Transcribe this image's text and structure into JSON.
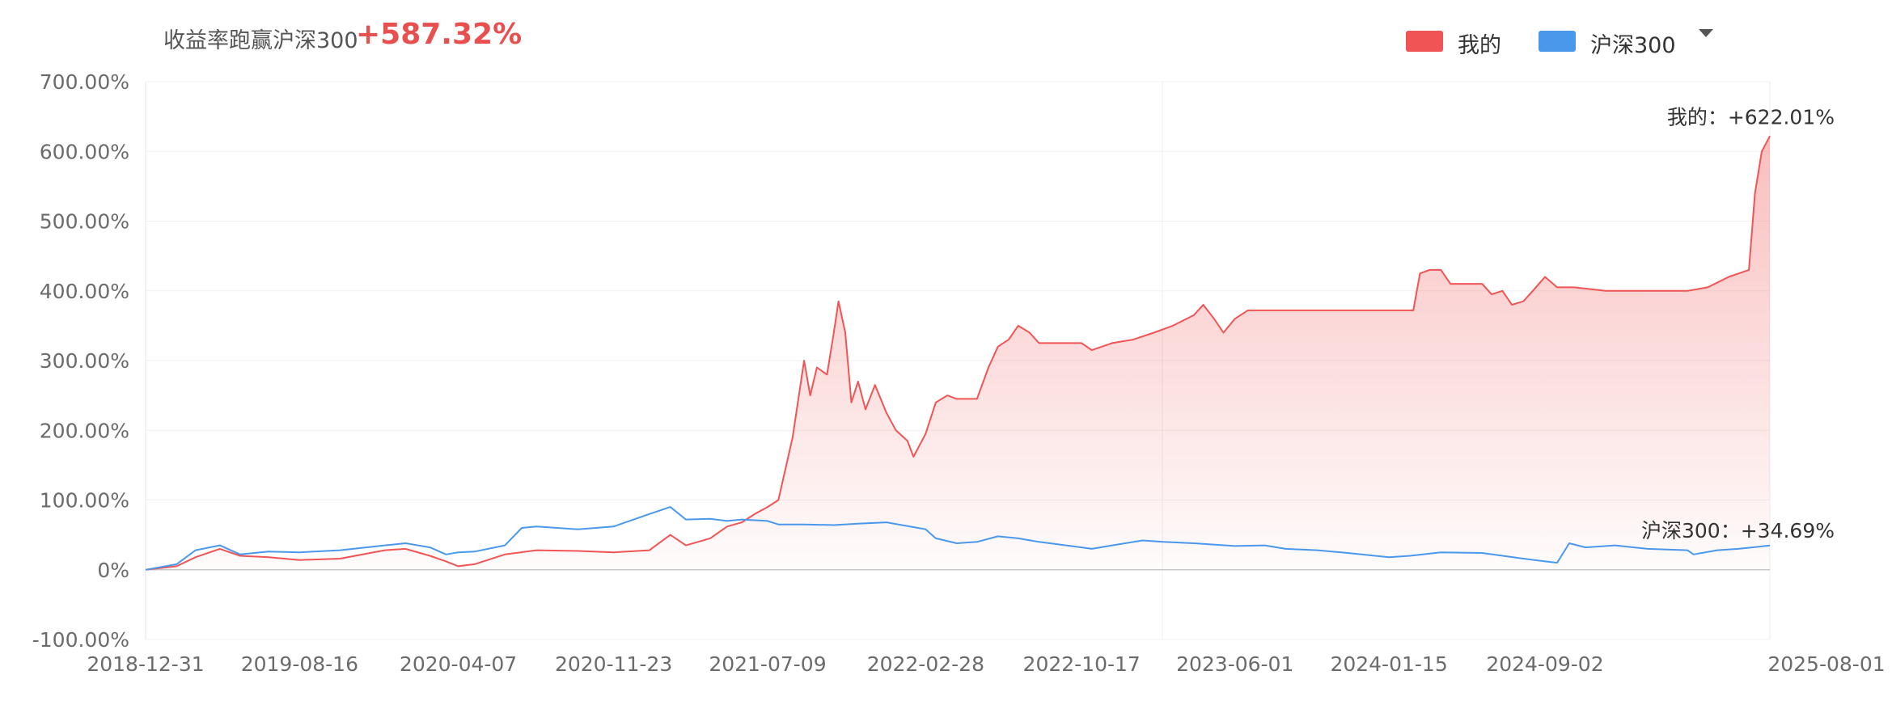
{
  "header": {
    "headline_label": "收益率跑赢沪深300",
    "headline_value": "+587.32%",
    "legend": [
      {
        "name": "我的",
        "color": "#f05454"
      },
      {
        "name": "沪深300",
        "color": "#4a98ec"
      }
    ],
    "legend_toggle_icon": "chevron-down-icon"
  },
  "chart_data": {
    "type": "area",
    "x_ticks": [
      "2018-12-31",
      "2019-08-16",
      "2020-04-07",
      "2020-11-23",
      "2021-07-09",
      "2022-02-28",
      "2022-10-17",
      "2023-06-01",
      "2024-01-15",
      "2024-09-02",
      "2025-08-01"
    ],
    "y_ticks": [
      "700.00%",
      "600.00%",
      "500.00%",
      "400.00%",
      "300.00%",
      "200.00%",
      "100.00%",
      "0%",
      "-100.00%"
    ],
    "ylim": [
      -100,
      700
    ],
    "xlim": [
      "2018-12-31",
      "2025-08-01"
    ],
    "grid": true,
    "legend_position": "top-right",
    "series": [
      {
        "name": "我的",
        "color": "#f05454",
        "fill": true,
        "end_label": "我的：+622.01%",
        "points": [
          [
            "2018-12-31",
            0
          ],
          [
            "2019-02-15",
            5
          ],
          [
            "2019-03-15",
            18
          ],
          [
            "2019-04-20",
            30
          ],
          [
            "2019-05-20",
            20
          ],
          [
            "2019-07-01",
            18
          ],
          [
            "2019-08-16",
            14
          ],
          [
            "2019-10-15",
            16
          ],
          [
            "2019-12-20",
            28
          ],
          [
            "2020-01-20",
            30
          ],
          [
            "2020-02-25",
            20
          ],
          [
            "2020-03-20",
            12
          ],
          [
            "2020-04-07",
            5
          ],
          [
            "2020-05-01",
            8
          ],
          [
            "2020-06-15",
            22
          ],
          [
            "2020-08-01",
            28
          ],
          [
            "2020-10-01",
            27
          ],
          [
            "2020-11-23",
            25
          ],
          [
            "2021-01-15",
            28
          ],
          [
            "2021-02-15",
            50
          ],
          [
            "2021-03-10",
            35
          ],
          [
            "2021-04-15",
            45
          ],
          [
            "2021-05-10",
            62
          ],
          [
            "2021-06-01",
            68
          ],
          [
            "2021-06-20",
            80
          ],
          [
            "2021-07-09",
            90
          ],
          [
            "2021-07-25",
            100
          ],
          [
            "2021-08-15",
            190
          ],
          [
            "2021-09-01",
            300
          ],
          [
            "2021-09-10",
            250
          ],
          [
            "2021-09-20",
            290
          ],
          [
            "2021-10-05",
            280
          ],
          [
            "2021-10-15",
            340
          ],
          [
            "2021-10-22",
            385
          ],
          [
            "2021-11-01",
            340
          ],
          [
            "2021-11-10",
            240
          ],
          [
            "2021-11-20",
            270
          ],
          [
            "2021-12-01",
            230
          ],
          [
            "2021-12-15",
            265
          ],
          [
            "2022-01-01",
            225
          ],
          [
            "2022-01-15",
            200
          ],
          [
            "2022-02-01",
            185
          ],
          [
            "2022-02-10",
            162
          ],
          [
            "2022-02-28",
            195
          ],
          [
            "2022-03-15",
            240
          ],
          [
            "2022-04-01",
            250
          ],
          [
            "2022-04-15",
            245
          ],
          [
            "2022-05-15",
            245
          ],
          [
            "2022-06-01",
            290
          ],
          [
            "2022-06-15",
            320
          ],
          [
            "2022-07-01",
            330
          ],
          [
            "2022-07-15",
            350
          ],
          [
            "2022-08-01",
            340
          ],
          [
            "2022-08-15",
            325
          ],
          [
            "2022-09-15",
            325
          ],
          [
            "2022-10-17",
            325
          ],
          [
            "2022-11-01",
            315
          ],
          [
            "2022-12-01",
            325
          ],
          [
            "2023-01-01",
            330
          ],
          [
            "2023-02-01",
            340
          ],
          [
            "2023-03-01",
            350
          ],
          [
            "2023-04-01",
            365
          ],
          [
            "2023-04-15",
            380
          ],
          [
            "2023-05-01",
            360
          ],
          [
            "2023-05-15",
            340
          ],
          [
            "2023-06-01",
            360
          ],
          [
            "2023-06-20",
            372
          ],
          [
            "2023-08-01",
            372
          ],
          [
            "2023-10-01",
            372
          ],
          [
            "2023-12-01",
            372
          ],
          [
            "2024-01-15",
            372
          ],
          [
            "2024-02-20",
            372
          ],
          [
            "2024-03-01",
            425
          ],
          [
            "2024-03-15",
            430
          ],
          [
            "2024-04-01",
            430
          ],
          [
            "2024-04-15",
            410
          ],
          [
            "2024-05-15",
            410
          ],
          [
            "2024-06-01",
            410
          ],
          [
            "2024-06-15",
            395
          ],
          [
            "2024-07-01",
            400
          ],
          [
            "2024-07-15",
            380
          ],
          [
            "2024-08-01",
            385
          ],
          [
            "2024-08-15",
            400
          ],
          [
            "2024-09-02",
            420
          ],
          [
            "2024-09-20",
            405
          ],
          [
            "2024-10-15",
            405
          ],
          [
            "2024-12-01",
            400
          ],
          [
            "2025-02-01",
            400
          ],
          [
            "2025-04-01",
            400
          ],
          [
            "2025-05-01",
            405
          ],
          [
            "2025-06-01",
            420
          ],
          [
            "2025-07-01",
            430
          ],
          [
            "2025-07-10",
            540
          ],
          [
            "2025-07-20",
            600
          ],
          [
            "2025-08-01",
            622.01
          ]
        ]
      },
      {
        "name": "沪深300",
        "color": "#4a98ec",
        "fill": false,
        "end_label": "沪深300：+34.69%",
        "points": [
          [
            "2018-12-31",
            0
          ],
          [
            "2019-02-15",
            8
          ],
          [
            "2019-03-15",
            28
          ],
          [
            "2019-04-20",
            35
          ],
          [
            "2019-05-20",
            22
          ],
          [
            "2019-07-01",
            26
          ],
          [
            "2019-08-16",
            25
          ],
          [
            "2019-10-15",
            28
          ],
          [
            "2019-12-20",
            35
          ],
          [
            "2020-01-20",
            38
          ],
          [
            "2020-02-25",
            32
          ],
          [
            "2020-03-20",
            22
          ],
          [
            "2020-04-07",
            25
          ],
          [
            "2020-05-01",
            26
          ],
          [
            "2020-06-15",
            35
          ],
          [
            "2020-07-10",
            60
          ],
          [
            "2020-08-01",
            62
          ],
          [
            "2020-10-01",
            58
          ],
          [
            "2020-11-23",
            62
          ],
          [
            "2021-01-15",
            80
          ],
          [
            "2021-02-15",
            90
          ],
          [
            "2021-03-10",
            72
          ],
          [
            "2021-04-15",
            73
          ],
          [
            "2021-05-10",
            70
          ],
          [
            "2021-06-01",
            72
          ],
          [
            "2021-07-09",
            70
          ],
          [
            "2021-07-25",
            65
          ],
          [
            "2021-09-01",
            65
          ],
          [
            "2021-10-15",
            64
          ],
          [
            "2021-11-20",
            66
          ],
          [
            "2022-01-01",
            68
          ],
          [
            "2022-02-28",
            58
          ],
          [
            "2022-03-15",
            45
          ],
          [
            "2022-04-15",
            38
          ],
          [
            "2022-05-15",
            40
          ],
          [
            "2022-06-15",
            48
          ],
          [
            "2022-07-15",
            45
          ],
          [
            "2022-08-15",
            40
          ],
          [
            "2022-10-17",
            32
          ],
          [
            "2022-11-01",
            30
          ],
          [
            "2022-12-01",
            35
          ],
          [
            "2023-01-15",
            42
          ],
          [
            "2023-02-15",
            40
          ],
          [
            "2023-04-01",
            38
          ],
          [
            "2023-06-01",
            34
          ],
          [
            "2023-07-15",
            35
          ],
          [
            "2023-08-15",
            30
          ],
          [
            "2023-10-01",
            28
          ],
          [
            "2023-11-15",
            24
          ],
          [
            "2024-01-15",
            18
          ],
          [
            "2024-02-15",
            20
          ],
          [
            "2024-04-01",
            25
          ],
          [
            "2024-06-01",
            24
          ],
          [
            "2024-08-01",
            16
          ],
          [
            "2024-09-02",
            12
          ],
          [
            "2024-09-20",
            10
          ],
          [
            "2024-10-08",
            38
          ],
          [
            "2024-11-01",
            32
          ],
          [
            "2024-12-15",
            35
          ],
          [
            "2025-02-01",
            30
          ],
          [
            "2025-04-01",
            28
          ],
          [
            "2025-04-10",
            22
          ],
          [
            "2025-05-15",
            28
          ],
          [
            "2025-06-15",
            30
          ],
          [
            "2025-08-01",
            34.69
          ]
        ]
      }
    ]
  }
}
